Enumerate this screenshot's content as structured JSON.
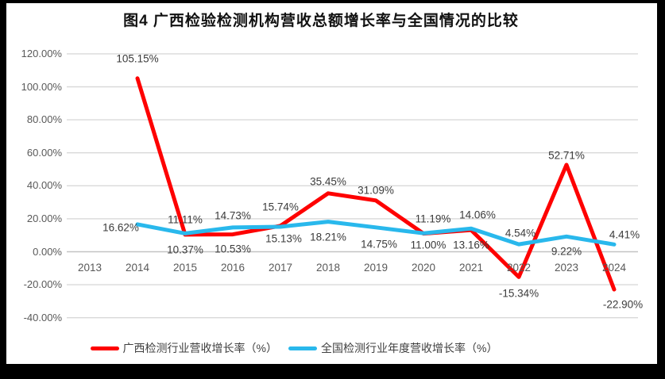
{
  "title": "图4 广西检验检测机构营收总额增长率与全国情况的比较",
  "chart_data": {
    "type": "line",
    "categories": [
      "2013",
      "2014",
      "2015",
      "2016",
      "2017",
      "2018",
      "2019",
      "2020",
      "2021",
      "2022",
      "2023",
      "2024"
    ],
    "y_axis": {
      "ticks": [
        "120.00%",
        "100.00%",
        "80.00%",
        "60.00%",
        "40.00%",
        "20.00%",
        "0.00%",
        "-20.00%",
        "-40.00%"
      ],
      "tick_values": [
        120,
        100,
        80,
        60,
        40,
        20,
        0,
        -20,
        -40
      ],
      "min": -40,
      "max": 120,
      "grid": true
    },
    "grid_color": "#d9d9d9",
    "axis_line_color": "#c3c3c3",
    "legend_position": "bottom",
    "series": [
      {
        "id": "guangxi",
        "name": "广西检测行业营收增长率（%）",
        "color": "#fe0000",
        "values": [
          null,
          105.15,
          10.37,
          10.53,
          15.74,
          35.45,
          31.09,
          11.0,
          13.16,
          -15.34,
          52.71,
          -22.9
        ],
        "labels": [
          "",
          "105.15%",
          "10.37%",
          "10.53%",
          "15.74%",
          "35.45%",
          "31.09%",
          "11.00%",
          "13.16%",
          "-15.34%",
          "52.71%",
          "-22.90%"
        ],
        "label_offsets": [
          null,
          [
            0,
            -25
          ],
          [
            0,
            19
          ],
          [
            0,
            18
          ],
          [
            0,
            -24
          ],
          [
            0,
            -15
          ],
          [
            0,
            -13
          ],
          [
            6,
            14
          ],
          [
            0,
            19
          ],
          [
            0,
            21
          ],
          [
            0,
            -12
          ],
          [
            11,
            19
          ]
        ]
      },
      {
        "id": "national",
        "name": "全国检测行业年度营收增长率（%）",
        "color": "#29b8ec",
        "values": [
          null,
          16.62,
          11.11,
          14.73,
          15.13,
          18.21,
          14.75,
          11.19,
          14.06,
          4.54,
          9.22,
          4.41
        ],
        "labels": [
          "",
          "16.62%",
          "11.11%",
          "14.73%",
          "15.13%",
          "18.21%",
          "14.75%",
          "11.19%",
          "14.06%",
          "4.54%",
          "9.22%",
          "4.41%"
        ],
        "label_offsets": [
          null,
          [
            -21,
            4
          ],
          [
            0,
            -17
          ],
          [
            0,
            -15
          ],
          [
            4,
            15
          ],
          [
            0,
            19
          ],
          [
            4,
            21
          ],
          [
            12,
            -18
          ],
          [
            8,
            -17
          ],
          [
            2,
            -14
          ],
          [
            0,
            19
          ],
          [
            13,
            -12
          ]
        ]
      }
    ]
  }
}
